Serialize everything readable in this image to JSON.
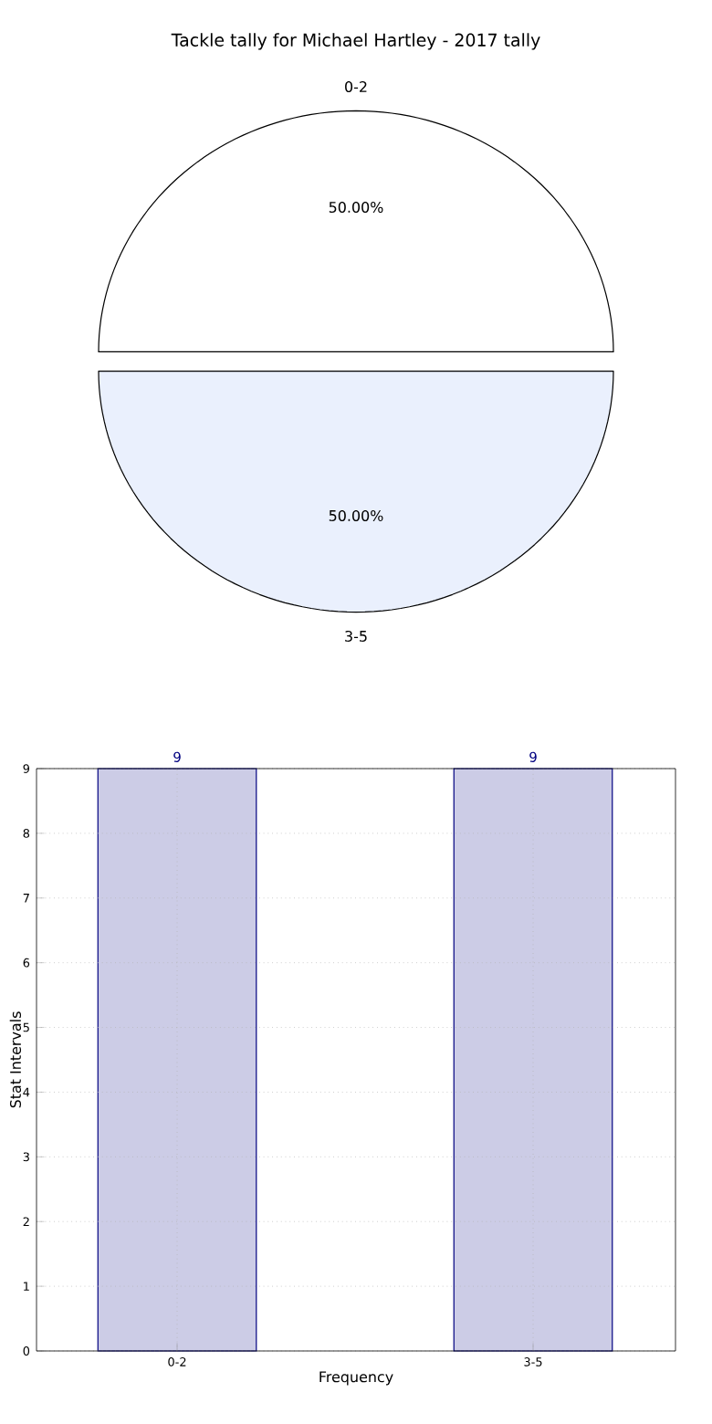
{
  "chart_data": [
    {
      "type": "pie",
      "title": "Tackle tally for Michael Hartley - 2017 tally",
      "categories": [
        "0-2",
        "3-5"
      ],
      "values": [
        50,
        50
      ],
      "colors": [
        "#ffffff",
        "#eaf0fd"
      ],
      "value_labels": [
        "50.00%",
        "50.00%"
      ]
    },
    {
      "type": "bar",
      "categories": [
        "0-2",
        "3-5"
      ],
      "values": [
        9,
        9
      ],
      "color": "#cccce6",
      "xlabel": "Frequency",
      "ylabel": "Stat Intervals",
      "ylim": [
        0,
        9
      ],
      "yticks": [
        0,
        1,
        2,
        3,
        4,
        5,
        6,
        7,
        8,
        9
      ],
      "grid": true,
      "data_labels": true
    }
  ]
}
